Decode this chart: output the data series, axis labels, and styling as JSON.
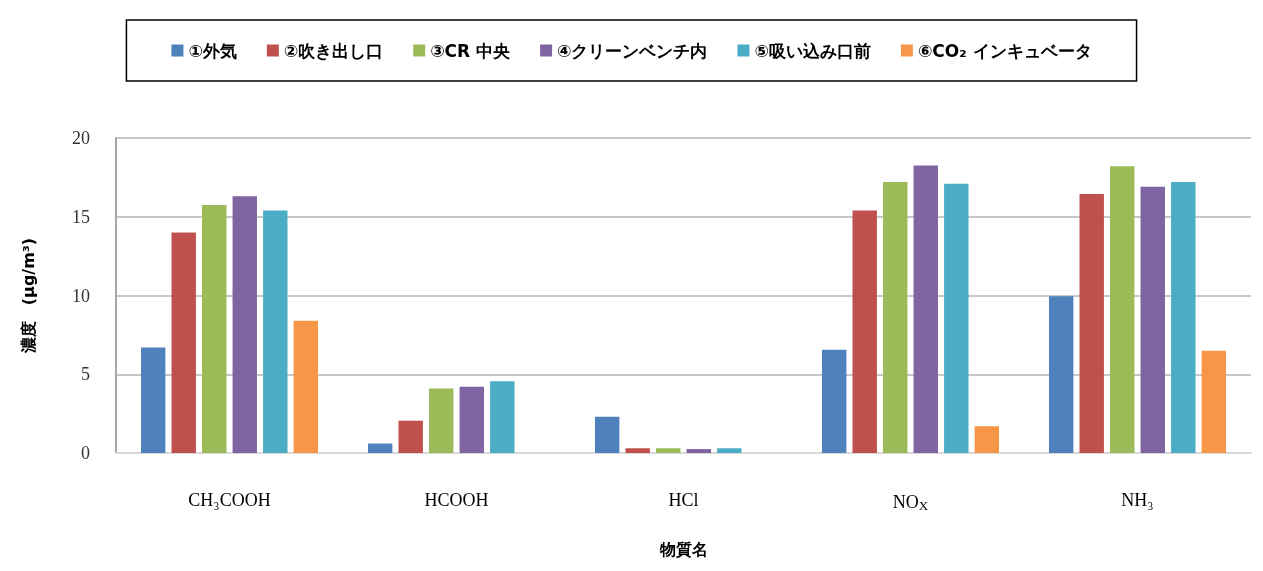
{
  "chart_data": {
    "type": "bar",
    "categories": [
      "CH₃COOH",
      "HCOOH",
      "HCl",
      "NO$_{X}$",
      "NH₃"
    ],
    "xlabel": "物質名",
    "ylabel": "濃度　(μg/m³)",
    "ylim": [
      0,
      20
    ],
    "yticks": [
      0,
      5,
      10,
      15,
      20
    ],
    "grid": "y",
    "legend": "top",
    "series": [
      {
        "name": "①外気",
        "color": "#4f81bd",
        "values": [
          6.7,
          0.6,
          2.3,
          6.55,
          9.95
        ]
      },
      {
        "name": "②吹き出し口",
        "color": "#c0504d",
        "values": [
          14.0,
          2.05,
          0.3,
          15.4,
          16.45
        ]
      },
      {
        "name": "③CR 中央",
        "color": "#9bbb59",
        "values": [
          15.75,
          4.1,
          0.3,
          17.2,
          18.2
        ]
      },
      {
        "name": "④クリーンベンチ内",
        "color": "#8064a2",
        "values": [
          16.3,
          4.2,
          0.25,
          18.25,
          16.9
        ]
      },
      {
        "name": "⑤吸い込み口前",
        "color": "#4bacc6",
        "values": [
          15.4,
          4.55,
          0.3,
          17.1,
          17.2
        ]
      },
      {
        "name": "⑥CO₂ インキュベータ",
        "color": "#f79646",
        "values": [
          8.4,
          null,
          null,
          1.7,
          6.5
        ]
      }
    ]
  }
}
